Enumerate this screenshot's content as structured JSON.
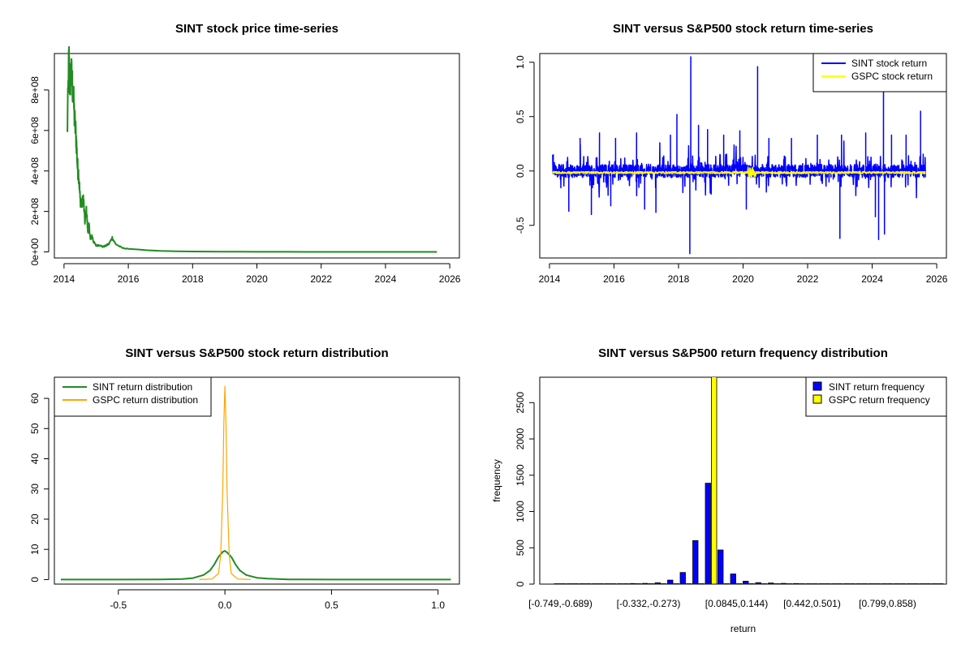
{
  "colors": {
    "green": "#228B22",
    "blue": "#0000FF",
    "yellow": "#FFFF00",
    "orange": "#FFA500",
    "black": "#000000"
  },
  "chart_data": [
    {
      "id": "price",
      "type": "line",
      "title": "SINT stock price time-series",
      "xlabel": "",
      "ylabel": "",
      "xlim": [
        2013.7,
        2026.3
      ],
      "ylim": [
        -30000000.0,
        980000000.0
      ],
      "x_ticks": [
        2014,
        2016,
        2018,
        2020,
        2022,
        2024,
        2026
      ],
      "x_tick_labels": [
        "2014",
        "2016",
        "2018",
        "2020",
        "2022",
        "2024",
        "2026"
      ],
      "y_ticks": [
        0,
        200000000,
        400000000,
        600000000,
        800000000
      ],
      "y_tick_labels": [
        "0e+00",
        "2e+08",
        "4e+08",
        "6e+08",
        "8e+08"
      ],
      "series": [
        {
          "name": "SINT stock price",
          "color": "#228B22",
          "x": [
            2014.1,
            2014.15,
            2014.18,
            2014.22,
            2014.27,
            2014.33,
            2014.38,
            2014.42,
            2014.46,
            2014.5,
            2014.55,
            2014.6,
            2014.65,
            2014.7,
            2014.74,
            2014.78,
            2014.82,
            2014.87,
            2014.92,
            2015.0,
            2015.1,
            2015.2,
            2015.3,
            2015.4,
            2015.5,
            2015.6,
            2015.8,
            2016.0,
            2016.3,
            2016.6,
            2017.0,
            2017.5,
            2018.0,
            2019.0,
            2020.0,
            2021.0,
            2022.0,
            2023.0,
            2024.0,
            2025.0,
            2025.6
          ],
          "values": [
            580000000,
            950000000,
            840000000,
            880000000,
            810000000,
            650000000,
            560000000,
            420000000,
            380000000,
            260000000,
            230000000,
            270000000,
            150000000,
            210000000,
            100000000,
            130000000,
            60000000,
            80000000,
            50000000,
            30000000,
            35000000,
            25000000,
            30000000,
            40000000,
            70000000,
            40000000,
            20000000,
            15000000,
            12000000,
            8000000,
            5000000,
            3000000,
            2000000,
            1000000,
            500000,
            300000,
            200000,
            150000,
            100000,
            80000,
            50000
          ]
        }
      ]
    },
    {
      "id": "returns",
      "type": "line",
      "title": "SINT versus S&P500 stock return time-series",
      "xlabel": "",
      "ylabel": "",
      "xlim": [
        2013.7,
        2026.3
      ],
      "ylim": [
        -0.8,
        1.08
      ],
      "x_ticks": [
        2014,
        2016,
        2018,
        2020,
        2022,
        2024,
        2026
      ],
      "x_tick_labels": [
        "2014",
        "2016",
        "2018",
        "2020",
        "2022",
        "2024",
        "2026"
      ],
      "y_ticks": [
        -0.5,
        0.0,
        0.5,
        1.0
      ],
      "y_tick_labels": [
        "-0.5",
        "0.0",
        "0.5",
        "1.0"
      ],
      "legend_position": "top-right",
      "legend": [
        {
          "label": "SINT stock return",
          "color": "#0000FF",
          "style": "line"
        },
        {
          "label": "GSPC stock return",
          "color": "#FFFF00",
          "style": "line"
        }
      ],
      "spikes": {
        "x": [
          2014.12,
          2014.6,
          2014.95,
          2015.3,
          2015.55,
          2015.9,
          2016.05,
          2016.7,
          2016.95,
          2017.3,
          2017.75,
          2017.95,
          2018.35,
          2018.38,
          2018.62,
          2018.9,
          2019.4,
          2019.9,
          2020.1,
          2020.45,
          2020.8,
          2021.5,
          2022.3,
          2023.0,
          2023.05,
          2023.8,
          2024.1,
          2024.2,
          2024.35,
          2024.38,
          2024.6,
          2025.05,
          2025.5
        ],
        "values": [
          0.15,
          -0.37,
          0.3,
          -0.4,
          0.35,
          -0.32,
          0.3,
          0.35,
          -0.35,
          -0.38,
          0.33,
          0.52,
          -0.76,
          1.05,
          0.42,
          0.38,
          0.33,
          0.37,
          -0.35,
          0.96,
          0.3,
          0.3,
          0.33,
          -0.62,
          0.33,
          0.35,
          -0.42,
          -0.63,
          0.75,
          -0.58,
          0.33,
          0.33,
          0.55
        ]
      },
      "series": [
        {
          "name": "SINT stock return",
          "color": "#0000FF",
          "x_start": 2014.1,
          "x_end": 2025.65,
          "typical_amplitude": 0.06
        },
        {
          "name": "GSPC stock return",
          "color": "#FFFF00",
          "x_start": 2014.1,
          "x_end": 2025.65,
          "typical_amplitude": 0.01
        }
      ]
    },
    {
      "id": "density",
      "type": "line",
      "title": "SINT versus S&P500 stock return distribution",
      "xlabel": "",
      "ylabel": "",
      "xlim": [
        -0.8,
        1.1
      ],
      "ylim": [
        -1.5,
        67
      ],
      "x_ticks": [
        -0.5,
        0.0,
        0.5,
        1.0
      ],
      "x_tick_labels": [
        "-0.5",
        "0.0",
        "0.5",
        "1.0"
      ],
      "y_ticks": [
        0,
        10,
        20,
        30,
        40,
        50,
        60
      ],
      "y_tick_labels": [
        "0",
        "10",
        "20",
        "30",
        "40",
        "50",
        "60"
      ],
      "legend_position": "top-left",
      "legend": [
        {
          "label": "SINT return distribution",
          "color": "#228B22",
          "style": "line"
        },
        {
          "label": "GSPC return distribution",
          "color": "#FFA500",
          "style": "line"
        }
      ],
      "series": [
        {
          "name": "SINT return distribution",
          "color": "#228B22",
          "x": [
            -0.77,
            -0.5,
            -0.3,
            -0.2,
            -0.15,
            -0.1,
            -0.07,
            -0.05,
            -0.03,
            -0.01,
            0.0,
            0.01,
            0.03,
            0.05,
            0.07,
            0.1,
            0.15,
            0.2,
            0.25,
            0.3,
            0.5,
            1.06
          ],
          "values": [
            0.0,
            0.0,
            0.05,
            0.2,
            0.5,
            1.5,
            3.0,
            5.0,
            7.5,
            9.2,
            9.5,
            9.0,
            7.5,
            5.0,
            3.0,
            1.5,
            0.6,
            0.3,
            0.2,
            0.05,
            0.0,
            0.0
          ]
        },
        {
          "name": "GSPC return distribution",
          "color": "#FFA500",
          "x": [
            -0.12,
            -0.06,
            -0.03,
            -0.02,
            -0.01,
            -0.005,
            0.0,
            0.005,
            0.01,
            0.02,
            0.03,
            0.06,
            0.12
          ],
          "values": [
            0.0,
            0.2,
            2.0,
            8.0,
            30.0,
            52.0,
            64.0,
            52.0,
            30.0,
            8.0,
            2.0,
            0.2,
            0.0
          ]
        }
      ]
    },
    {
      "id": "frequency",
      "type": "bar",
      "title": "SINT versus S&P500 return frequency distribution",
      "xlabel": "return",
      "ylabel": "frequency",
      "ylim": [
        0,
        2850
      ],
      "y_ticks": [
        0,
        500,
        1000,
        1500,
        2000,
        2500
      ],
      "y_tick_labels": [
        "0",
        "500",
        "1000",
        "1500",
        "2000",
        "2500"
      ],
      "x_tick_labels_shown": [
        "[-0.749,-0.689)",
        "[-0.332,-0.273)",
        "[0.0845,0.144)",
        "[0.442,0.501)",
        "[0.799,0.858)"
      ],
      "x_tick_label_category_index": [
        0,
        7,
        14,
        20,
        26
      ],
      "legend_position": "top-right",
      "legend": [
        {
          "label": "SINT return frequency",
          "color": "#0000FF",
          "style": "box"
        },
        {
          "label": "GSPC return frequency",
          "color": "#FFFF00",
          "style": "box"
        }
      ],
      "series": [
        {
          "name": "SINT return frequency",
          "color": "#0000FF",
          "values": [
            1,
            1,
            1,
            2,
            3,
            5,
            8,
            10,
            18,
            55,
            160,
            600,
            1390,
            470,
            140,
            40,
            20,
            15,
            10,
            8,
            5,
            4,
            3,
            2,
            2,
            1,
            1,
            1,
            1,
            1,
            1
          ]
        },
        {
          "name": "GSPC return frequency",
          "color": "#FFFF00",
          "values": [
            0,
            0,
            0,
            0,
            0,
            0,
            0,
            0,
            0,
            0,
            0,
            0,
            2900,
            0,
            0,
            0,
            0,
            0,
            0,
            0,
            0,
            0,
            0,
            0,
            0,
            0,
            0,
            0,
            0,
            0,
            0
          ]
        }
      ]
    }
  ]
}
